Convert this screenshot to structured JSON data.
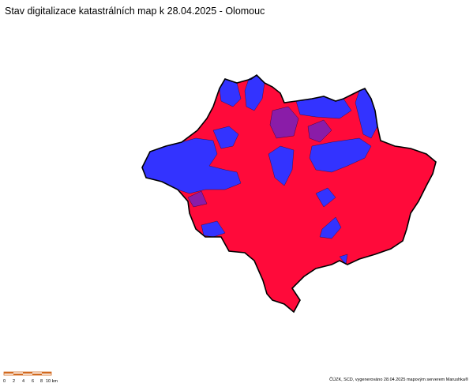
{
  "title": "Stav digitalizace katastrálních map k 28.04.2025 - Olomouc",
  "scale_bar": {
    "labels": [
      "0",
      "2",
      "4",
      "6",
      "8",
      "10 km"
    ]
  },
  "credit": "ČÚZK, SCD, vygenerováno 28.04.2025 mapovým serverem Marushka®"
}
